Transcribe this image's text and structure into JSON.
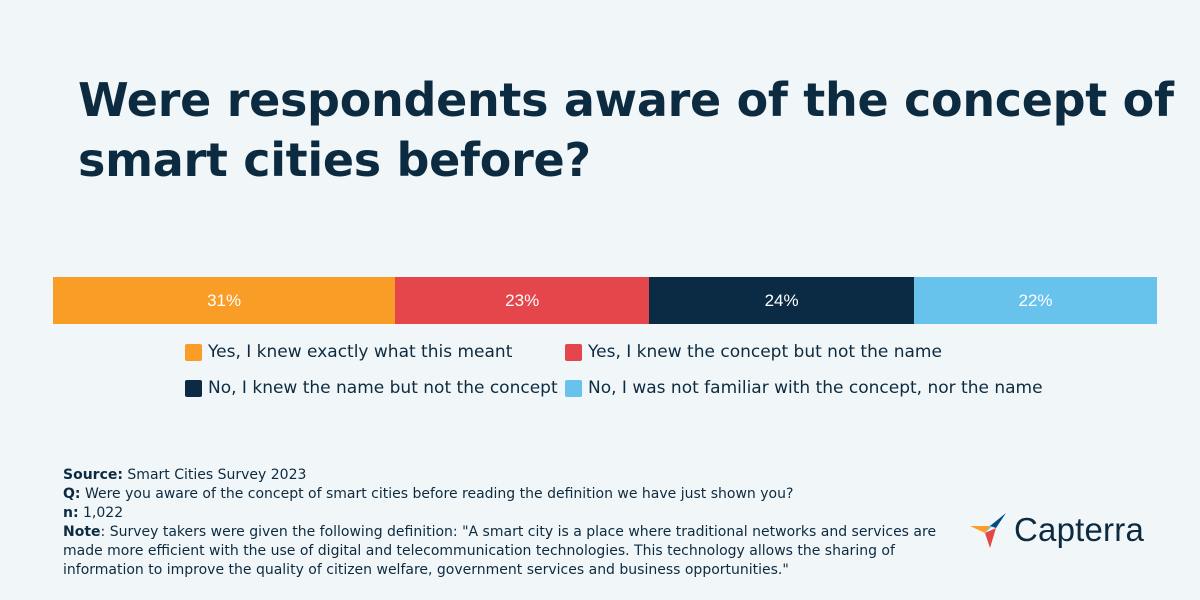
{
  "title": "Were respondents aware of the concept of smart cities before?",
  "chart_data": {
    "type": "bar",
    "orientation": "horizontal-stacked-100",
    "categories": [
      "Yes, I knew exactly what this meant",
      "Yes, I knew the concept but not the name",
      "No, I knew the name but not the concept",
      "No, I was not familiar with the concept, nor the name"
    ],
    "values": [
      31,
      23,
      24,
      22
    ],
    "labels": [
      "31%",
      "23%",
      "24%",
      "22%"
    ],
    "colors": [
      "#f99d27",
      "#e4464b",
      "#0b2a43",
      "#67c2ec"
    ],
    "legend_position": "bottom",
    "grid": false
  },
  "notes": {
    "source_label": "Source:",
    "source_text": " Smart Cities Survey 2023",
    "q_label": "Q:",
    "q_text": " Were you aware of the concept of smart cities before reading the definition we have just shown you?",
    "n_label": "n:",
    "n_text": " 1,022",
    "note_label": "Note",
    "note_text": ": Survey takers were given the following definition: \"A smart city is a place where traditional networks and services are made more efficient with the use of digital and telecommunication technologies. This technology allows the sharing of information to improve the quality of citizen welfare, government services and business opportunities.\""
  },
  "brand": {
    "name": "Capterra",
    "icon": "capterra-logo-icon"
  }
}
